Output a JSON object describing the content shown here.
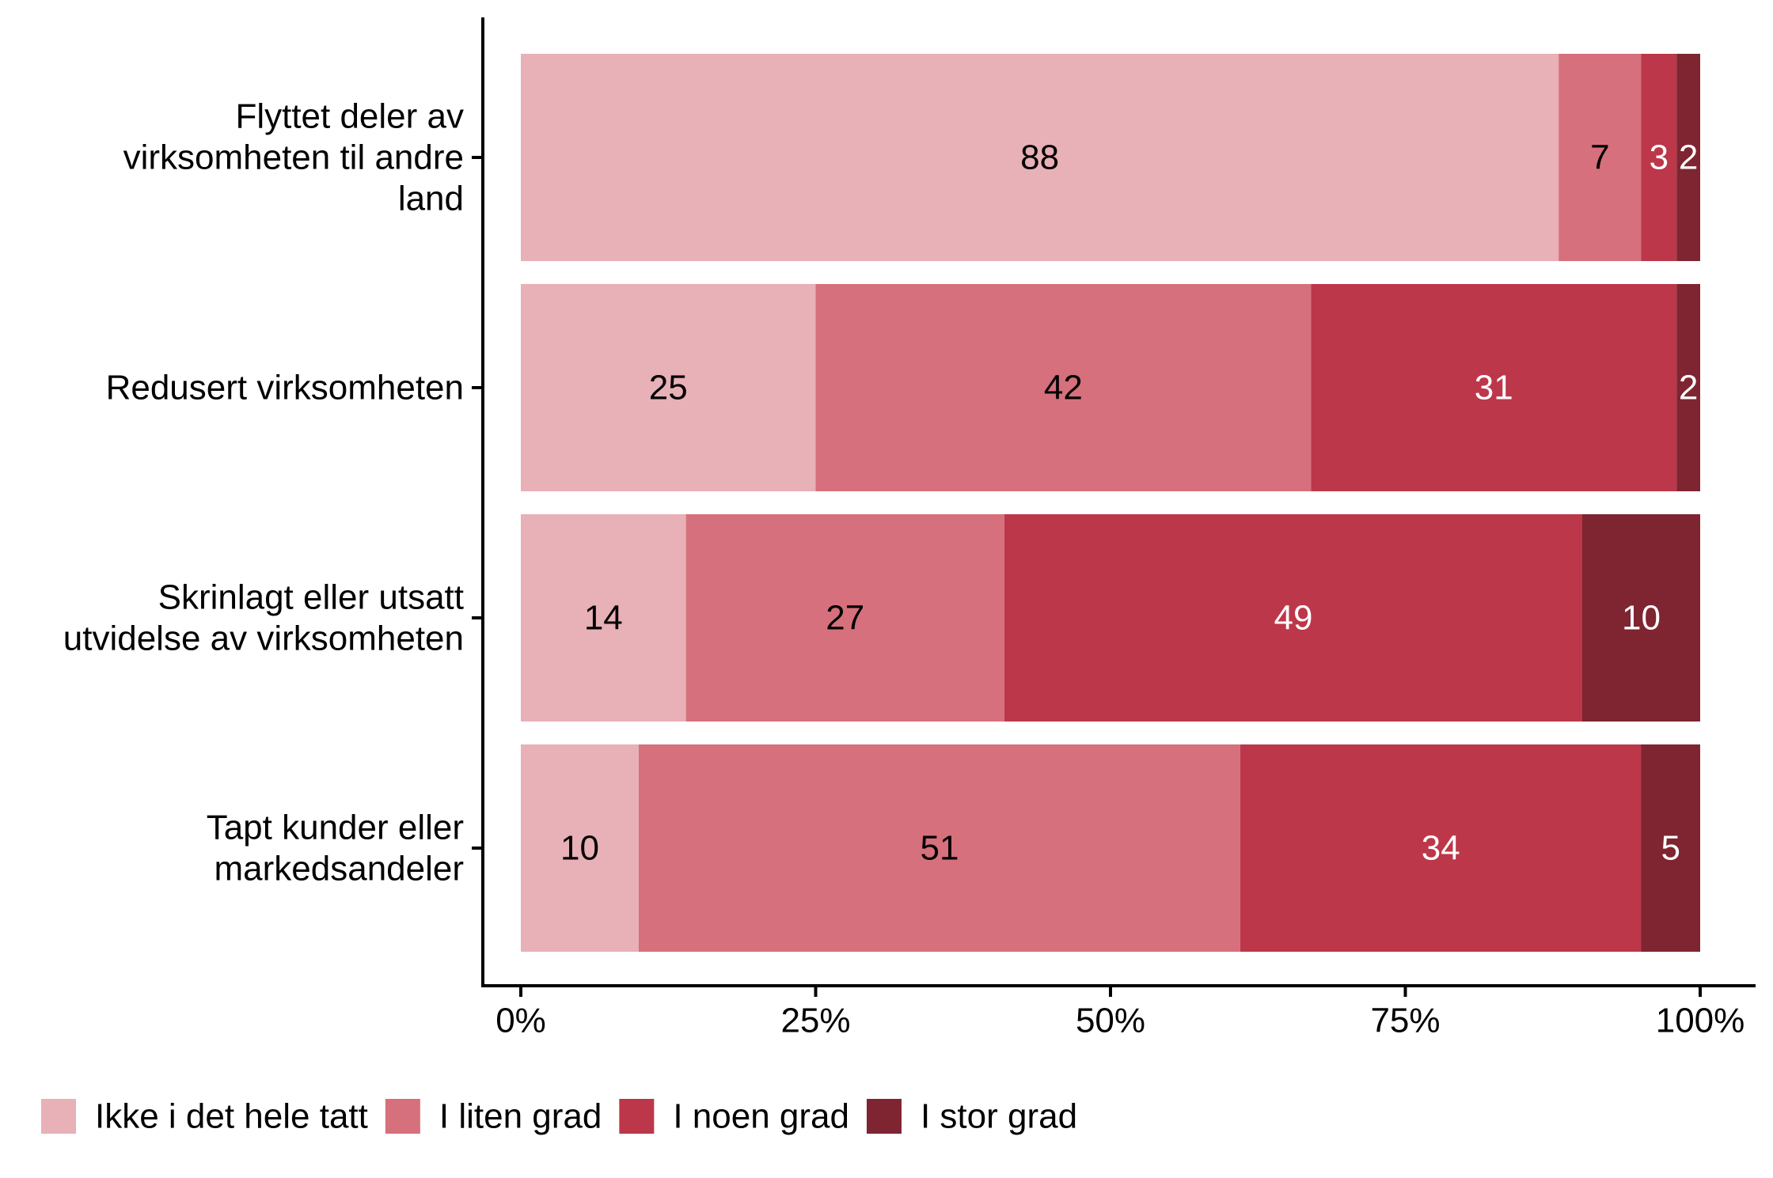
{
  "chart_data": {
    "type": "bar",
    "orientation": "horizontal",
    "stacked": true,
    "title": "",
    "xlabel": "",
    "ylabel": "",
    "xlim": [
      0,
      100
    ],
    "x_ticks": [
      {
        "value": 0,
        "label": "0%"
      },
      {
        "value": 25,
        "label": "25%"
      },
      {
        "value": 50,
        "label": "50%"
      },
      {
        "value": 75,
        "label": "75%"
      },
      {
        "value": 100,
        "label": "100%"
      }
    ],
    "categories": [
      [
        "Flyttet deler av",
        "virksomheten til andre",
        "land"
      ],
      [
        "Redusert virksomheten"
      ],
      [
        "Skrinlagt eller utsatt",
        "utvidelse av virksomheten"
      ],
      [
        "Tapt kunder eller",
        "markedsandeler"
      ]
    ],
    "series": [
      {
        "name": "Ikke i det hele tatt",
        "color": "#E8B0B7",
        "label_color": "#000000",
        "values": [
          88,
          25,
          14,
          10
        ]
      },
      {
        "name": "I liten grad",
        "color": "#D6707C",
        "label_color": "#000000",
        "values": [
          7,
          42,
          27,
          51
        ]
      },
      {
        "name": "I noen grad",
        "color": "#BC3749",
        "label_color": "#ffffff",
        "values": [
          3,
          31,
          49,
          34
        ]
      },
      {
        "name": "I stor grad",
        "color": "#7E2531",
        "label_color": "#ffffff",
        "values": [
          2,
          2,
          10,
          5
        ]
      }
    ],
    "grid": false,
    "legend": "bottom-left"
  }
}
